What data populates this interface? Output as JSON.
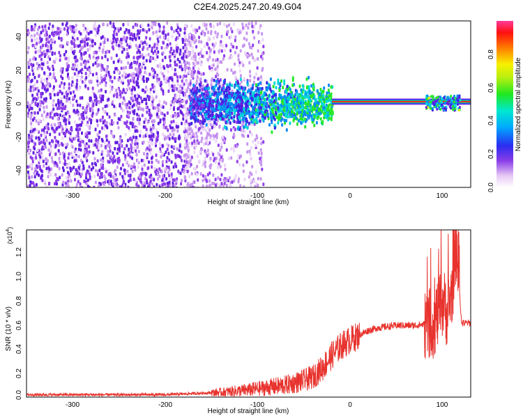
{
  "title": "C2E4.2025.247.20.49.G04",
  "chart_data": [
    {
      "type": "heatmap",
      "xlabel": "Height of straight line (km)",
      "ylabel": "Frequency (Hz)",
      "xlim": [
        -350,
        130
      ],
      "ylim": [
        -50,
        50
      ],
      "xticks": [
        "-300",
        "-200",
        "-100",
        "0",
        "100"
      ],
      "yticks": [
        "-40",
        "-20",
        "0",
        "20",
        "40"
      ],
      "colorbar": {
        "label": "Normalized spectral amplitude",
        "range": [
          0,
          1
        ],
        "ticks": [
          "0.0",
          "0.2",
          "0.4",
          "0.6",
          "0.8"
        ]
      },
      "features": [
        {
          "name": "broadband noise",
          "x_range": [
            -350,
            -180
          ],
          "freq_range": [
            -50,
            50
          ],
          "level": 0.15
        },
        {
          "name": "scattered noise",
          "x_range": [
            -180,
            -95
          ],
          "freq_range": [
            -50,
            50
          ],
          "level": 0.08
        },
        {
          "name": "main signal cluster",
          "x_range": [
            -175,
            -20
          ],
          "freq_range": [
            -10,
            12
          ],
          "level": 0.35
        },
        {
          "name": "carrier line",
          "x_range": [
            -20,
            130
          ],
          "freq": 1.5,
          "level": 0.95
        },
        {
          "name": "burst",
          "x_range": [
            80,
            118
          ],
          "freq_range": [
            -3,
            6
          ],
          "level": 0.55
        }
      ]
    },
    {
      "type": "line",
      "xlabel": "Height of straight line (km)",
      "ylabel": "SNR (10 * v/v)",
      "y_multiplier": "(x10^4)",
      "y_multiplier_base": "(x10",
      "y_multiplier_exp": "4",
      "y_multiplier_close": ")",
      "xlim": [
        -350,
        130
      ],
      "ylim": [
        0,
        1.4
      ],
      "xticks": [
        "-300",
        "-200",
        "-100",
        "0",
        "100"
      ],
      "yticks": [
        "0.0",
        "0.2",
        "0.4",
        "0.6",
        "0.8",
        "1.0",
        "1.2"
      ],
      "series": [
        {
          "name": "SNR",
          "color": "#e8322d",
          "x": [
            -350,
            -300,
            -250,
            -200,
            -170,
            -140,
            -110,
            -90,
            -70,
            -50,
            -40,
            -30,
            -20,
            -10,
            0,
            10,
            20,
            30,
            40,
            50,
            60,
            70,
            80,
            90,
            100,
            105,
            110,
            115,
            120,
            130
          ],
          "y": [
            0.02,
            0.02,
            0.02,
            0.02,
            0.03,
            0.04,
            0.06,
            0.08,
            0.1,
            0.14,
            0.17,
            0.25,
            0.35,
            0.43,
            0.48,
            0.52,
            0.56,
            0.58,
            0.59,
            0.6,
            0.6,
            0.6,
            0.61,
            0.62,
            0.8,
            0.7,
            0.9,
            1.3,
            0.62,
            0.62
          ]
        }
      ]
    }
  ],
  "colors": {
    "line": "#e8322d",
    "carrier": "#ff3b3b",
    "noise": "#7b2de0"
  }
}
